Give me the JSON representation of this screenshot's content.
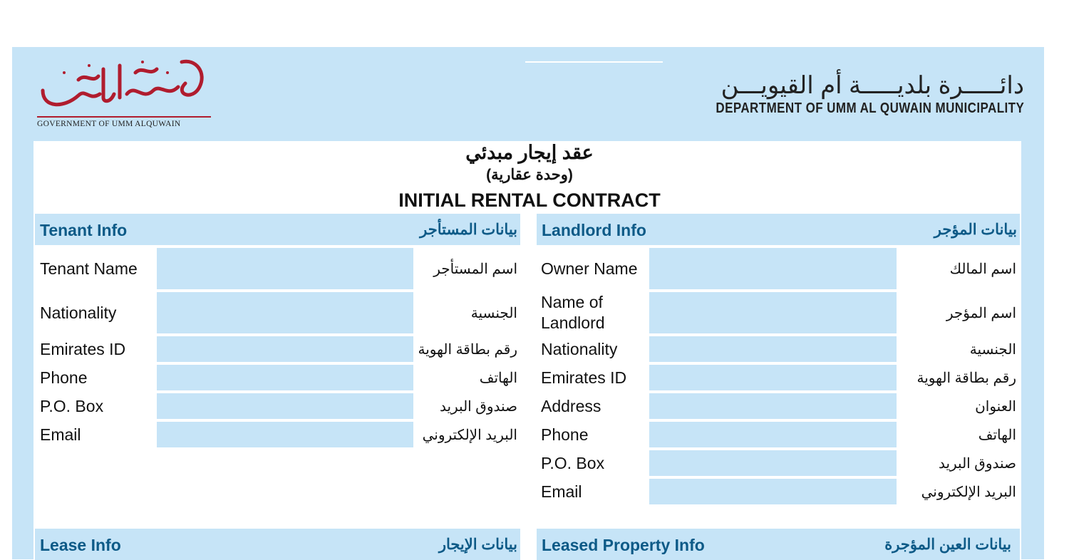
{
  "header": {
    "logo_arabic": "حكومة أم القيوين",
    "government_name": "GOVERNMENT OF UMM ALQUWAIN",
    "department_arabic": "دائـــــرة بلديـــــة أم القيويـــن",
    "department_english": "DEPARTMENT OF UMM AL QUWAIN MUNICIPALITY"
  },
  "title": {
    "arabic": "عقد إيجار مبدئي",
    "arabic_sub": "(وحدة عقارية)",
    "english": "INITIAL RENTAL CONTRACT"
  },
  "colors": {
    "panel": "#c6e4f7",
    "heading": "#0d5a87",
    "logo_red": "#b01c2e"
  },
  "tenant": {
    "title": "Tenant Info",
    "title_ar": "بيانات المستأجر",
    "fields": [
      {
        "label": "Tenant Name",
        "label_ar": "اسم المستأجر",
        "value": ""
      },
      {
        "label": "Nationality",
        "label_ar": "الجنسية",
        "value": ""
      },
      {
        "label": "Emirates ID",
        "label_ar": "رقم بطاقة الهوية",
        "value": ""
      },
      {
        "label": "Phone",
        "label_ar": "الهاتف",
        "value": ""
      },
      {
        "label": "P.O. Box",
        "label_ar": "صندوق البريد",
        "value": ""
      },
      {
        "label": "Email",
        "label_ar": "البريد الإلكتروني",
        "value": ""
      }
    ]
  },
  "landlord": {
    "title": "Landlord Info",
    "title_ar": "بيانات المؤجر",
    "fields": [
      {
        "label": "Owner Name",
        "label_ar": "اسم المالك",
        "value": ""
      },
      {
        "label": "Name of Landlord",
        "label_ar": "اسم المؤجر",
        "value": ""
      },
      {
        "label": "Nationality",
        "label_ar": "الجنسية",
        "value": ""
      },
      {
        "label": "Emirates ID",
        "label_ar": "رقم بطاقة الهوية",
        "value": ""
      },
      {
        "label": "Address",
        "label_ar": "العنوان",
        "value": ""
      },
      {
        "label": "Phone",
        "label_ar": "الهاتف",
        "value": ""
      },
      {
        "label": "P.O. Box",
        "label_ar": "صندوق البريد",
        "value": ""
      },
      {
        "label": "Email",
        "label_ar": "البريد الإلكتروني",
        "value": ""
      }
    ]
  },
  "lease": {
    "title": "Lease Info",
    "title_ar": "بيانات الإيجار"
  },
  "property": {
    "title": "Leased Property Info",
    "title_ar": "بيانات العين المؤجرة"
  }
}
